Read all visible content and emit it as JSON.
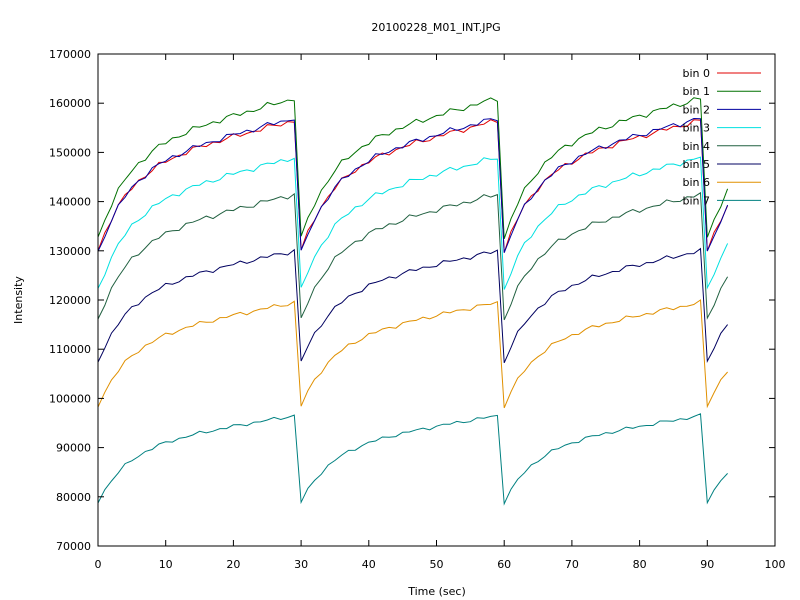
{
  "chart_data": {
    "type": "line",
    "title": "20100228_M01_INT.JPG",
    "xlabel": "Time (sec)",
    "ylabel": "Intensity",
    "xlim": [
      0,
      100
    ],
    "ylim": [
      70000,
      170000
    ],
    "xticks": [
      0,
      10,
      20,
      30,
      40,
      50,
      60,
      70,
      80,
      90,
      100
    ],
    "yticks": [
      70000,
      80000,
      90000,
      100000,
      110000,
      120000,
      130000,
      140000,
      150000,
      160000,
      170000
    ],
    "grid": false,
    "legend_position": "top-right",
    "cycle_period": 30,
    "series": [
      {
        "name": "bin 0",
        "color": "#e00000",
        "start": 130000,
        "end": 156500
      },
      {
        "name": "bin 1",
        "color": "#007000",
        "start": 132500,
        "end": 161000
      },
      {
        "name": "bin 2",
        "color": "#0000a0",
        "start": 129500,
        "end": 157000
      },
      {
        "name": "bin 3",
        "color": "#00e0e0",
        "start": 122000,
        "end": 149000
      },
      {
        "name": "bin 4",
        "color": "#206040",
        "start": 116000,
        "end": 141500
      },
      {
        "name": "bin 5",
        "color": "#000060",
        "start": 107500,
        "end": 130000
      },
      {
        "name": "bin 6",
        "color": "#e09000",
        "start": 98500,
        "end": 119500
      },
      {
        "name": "bin 7",
        "color": "#008080",
        "start": 79000,
        "end": 96500
      }
    ]
  }
}
